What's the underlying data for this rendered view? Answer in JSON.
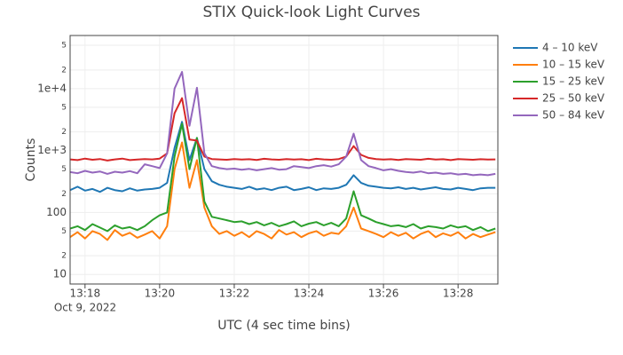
{
  "chart_data": {
    "type": "line",
    "title": "STIX Quick-look Light Curves",
    "xlabel": "UTC (4 sec time bins)",
    "ylabel": "Counts",
    "x_date_label": "Oct 9, 2022",
    "yscale": "log",
    "grid": true,
    "legend": "right",
    "xlim": [
      "2022-10-09T13:17:36",
      "2022-10-09T13:29:04"
    ],
    "xticks": [
      {
        "value": "2022-10-09T13:18:00",
        "label": "13:18"
      },
      {
        "value": "2022-10-09T13:20:00",
        "label": "13:20"
      },
      {
        "value": "2022-10-09T13:22:00",
        "label": "13:22"
      },
      {
        "value": "2022-10-09T13:24:00",
        "label": "13:24"
      },
      {
        "value": "2022-10-09T13:26:00",
        "label": "13:26"
      },
      {
        "value": "2022-10-09T13:28:00",
        "label": "13:28"
      }
    ],
    "ylim": [
      7,
      72000
    ],
    "yticks": [
      10,
      {
        "value": 20,
        "label": "2"
      },
      {
        "value": 50,
        "label": "5"
      },
      100,
      {
        "value": 200,
        "label": "2"
      },
      {
        "value": 500,
        "label": "5"
      },
      {
        "value": 1000,
        "label": "1e+3"
      },
      {
        "value": 2000,
        "label": "2"
      },
      {
        "value": 5000,
        "label": "5"
      },
      {
        "value": 10000,
        "label": "1e+4"
      },
      {
        "value": 20000,
        "label": "2"
      },
      {
        "value": 50000,
        "label": "5"
      }
    ],
    "x": [
      "2022-10-09T13:17:36",
      "2022-10-09T13:17:48",
      "2022-10-09T13:18:00",
      "2022-10-09T13:18:12",
      "2022-10-09T13:18:24",
      "2022-10-09T13:18:36",
      "2022-10-09T13:18:48",
      "2022-10-09T13:19:00",
      "2022-10-09T13:19:12",
      "2022-10-09T13:19:24",
      "2022-10-09T13:19:36",
      "2022-10-09T13:19:48",
      "2022-10-09T13:20:00",
      "2022-10-09T13:20:12",
      "2022-10-09T13:20:24",
      "2022-10-09T13:20:36",
      "2022-10-09T13:20:48",
      "2022-10-09T13:21:00",
      "2022-10-09T13:21:12",
      "2022-10-09T13:21:24",
      "2022-10-09T13:21:36",
      "2022-10-09T13:21:48",
      "2022-10-09T13:22:00",
      "2022-10-09T13:22:12",
      "2022-10-09T13:22:24",
      "2022-10-09T13:22:36",
      "2022-10-09T13:22:48",
      "2022-10-09T13:23:00",
      "2022-10-09T13:23:12",
      "2022-10-09T13:23:24",
      "2022-10-09T13:23:36",
      "2022-10-09T13:23:48",
      "2022-10-09T13:24:00",
      "2022-10-09T13:24:12",
      "2022-10-09T13:24:24",
      "2022-10-09T13:24:36",
      "2022-10-09T13:24:48",
      "2022-10-09T13:25:00",
      "2022-10-09T13:25:12",
      "2022-10-09T13:25:24",
      "2022-10-09T13:25:36",
      "2022-10-09T13:25:48",
      "2022-10-09T13:26:00",
      "2022-10-09T13:26:12",
      "2022-10-09T13:26:24",
      "2022-10-09T13:26:36",
      "2022-10-09T13:26:48",
      "2022-10-09T13:27:00",
      "2022-10-09T13:27:12",
      "2022-10-09T13:27:24",
      "2022-10-09T13:27:36",
      "2022-10-09T13:27:48",
      "2022-10-09T13:28:00",
      "2022-10-09T13:28:12",
      "2022-10-09T13:28:24",
      "2022-10-09T13:28:36",
      "2022-10-09T13:28:48",
      "2022-10-09T13:29:00"
    ],
    "series": [
      {
        "name": "4 – 10 keV",
        "color": "#1f77b4",
        "values": [
          230,
          260,
          225,
          240,
          215,
          250,
          230,
          220,
          245,
          225,
          235,
          240,
          250,
          300,
          1100,
          2900,
          700,
          1600,
          500,
          320,
          280,
          260,
          250,
          240,
          260,
          235,
          245,
          230,
          250,
          260,
          230,
          240,
          255,
          230,
          245,
          240,
          250,
          280,
          400,
          300,
          270,
          260,
          250,
          245,
          255,
          240,
          250,
          235,
          245,
          255,
          240,
          235,
          250,
          240,
          230,
          245,
          250,
          250
        ]
      },
      {
        "name": "10 – 15 keV",
        "color": "#ff7f0e",
        "values": [
          40,
          48,
          38,
          50,
          45,
          36,
          52,
          42,
          47,
          39,
          44,
          50,
          38,
          60,
          500,
          1350,
          250,
          700,
          120,
          60,
          45,
          50,
          42,
          48,
          40,
          50,
          45,
          38,
          52,
          44,
          48,
          40,
          46,
          50,
          42,
          47,
          45,
          60,
          120,
          55,
          50,
          45,
          40,
          48,
          42,
          47,
          38,
          45,
          50,
          40,
          46,
          42,
          48,
          38,
          45,
          40,
          44,
          48
        ]
      },
      {
        "name": "15 – 25 keV",
        "color": "#2ca02c",
        "values": [
          55,
          60,
          52,
          65,
          57,
          50,
          62,
          55,
          58,
          52,
          60,
          75,
          90,
          100,
          800,
          2700,
          500,
          1600,
          150,
          85,
          80,
          75,
          70,
          72,
          65,
          70,
          62,
          68,
          60,
          65,
          72,
          60,
          66,
          70,
          62,
          68,
          60,
          80,
          220,
          90,
          80,
          70,
          65,
          60,
          62,
          58,
          65,
          55,
          60,
          58,
          55,
          62,
          57,
          60,
          52,
          58,
          50,
          55
        ]
      },
      {
        "name": "25 – 50 keV",
        "color": "#d62728",
        "values": [
          720,
          700,
          740,
          710,
          730,
          690,
          720,
          740,
          700,
          715,
          730,
          720,
          740,
          900,
          4000,
          7000,
          1500,
          1450,
          800,
          730,
          720,
          710,
          730,
          715,
          725,
          705,
          735,
          720,
          710,
          730,
          715,
          725,
          700,
          735,
          720,
          710,
          730,
          800,
          1180,
          850,
          760,
          730,
          715,
          725,
          705,
          730,
          720,
          710,
          735,
          715,
          725,
          700,
          730,
          720,
          710,
          725,
          715,
          720
        ]
      },
      {
        "name": "50 – 84 keV",
        "color": "#9467bd",
        "values": [
          450,
          430,
          470,
          440,
          460,
          420,
          455,
          440,
          465,
          430,
          600,
          560,
          520,
          900,
          10000,
          18600,
          2500,
          10300,
          900,
          560,
          520,
          500,
          510,
          490,
          505,
          480,
          500,
          520,
          490,
          500,
          560,
          540,
          520,
          560,
          580,
          550,
          600,
          800,
          1870,
          700,
          560,
          520,
          480,
          500,
          470,
          450,
          440,
          460,
          430,
          440,
          420,
          430,
          410,
          420,
          400,
          410,
          400,
          420
        ]
      }
    ]
  }
}
